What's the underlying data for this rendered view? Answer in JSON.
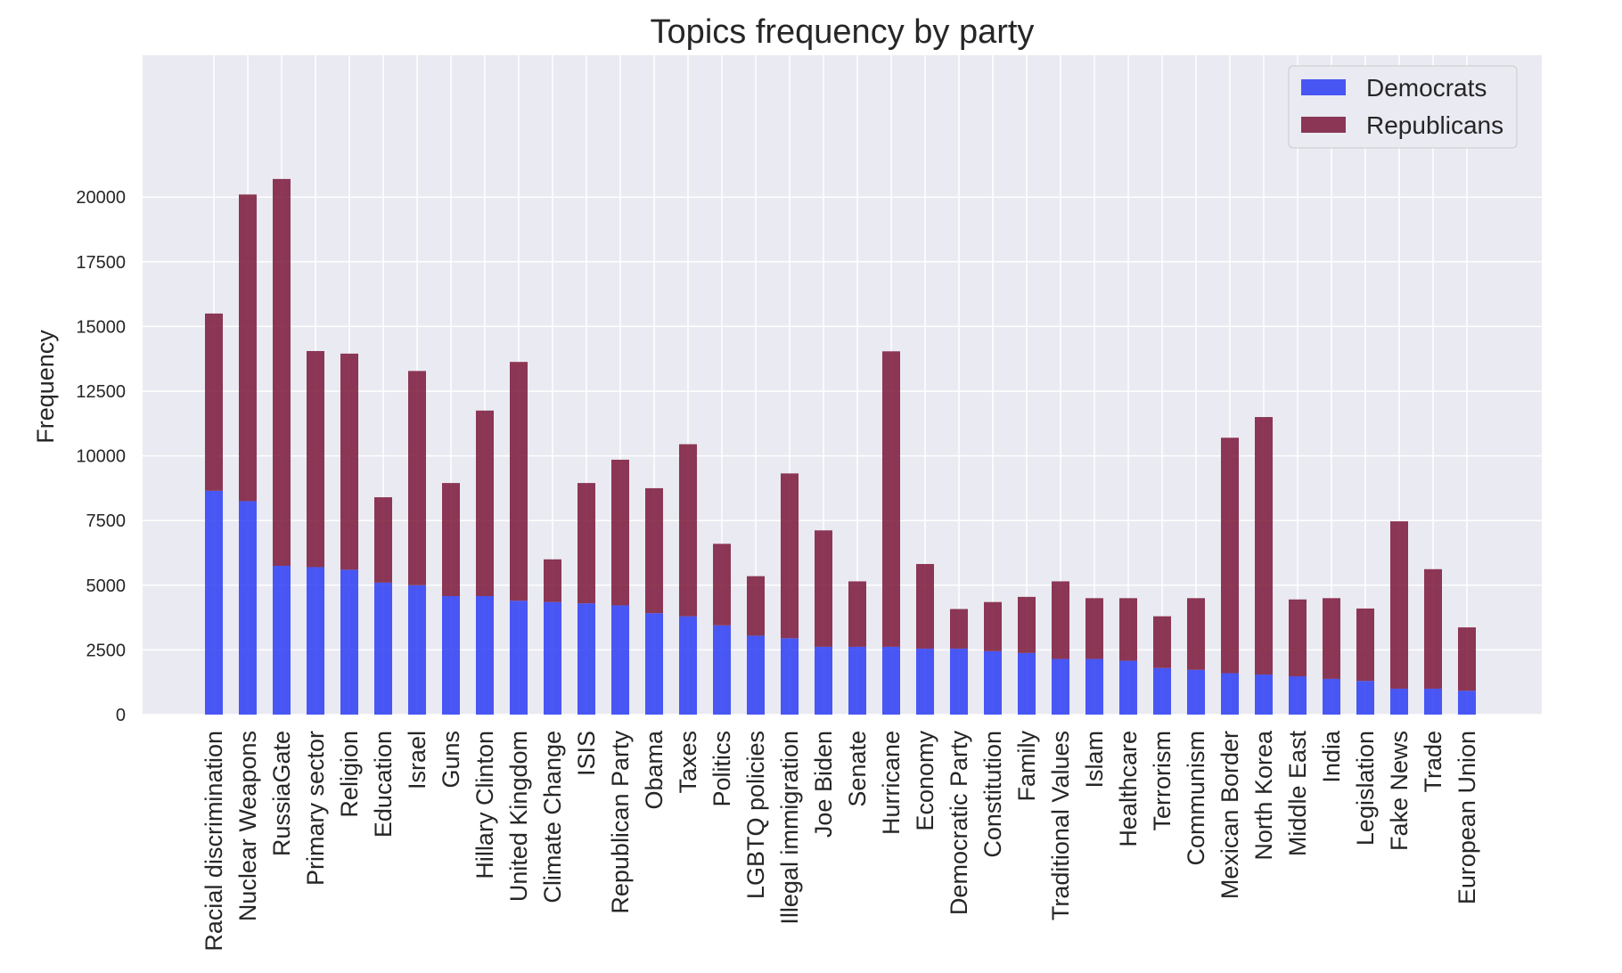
{
  "chart_data": {
    "type": "bar",
    "stacked": true,
    "title": "Topics frequency by party",
    "xlabel": "",
    "ylabel": "Frequency",
    "ylim": [
      0,
      21500
    ],
    "yticks": [
      0,
      2500,
      5000,
      7500,
      10000,
      12500,
      15000,
      17500,
      20000
    ],
    "grid": true,
    "legend_position": "top-right",
    "categories": [
      "Racial discrimination",
      "Nuclear Weapons",
      "RussiaGate",
      "Primary sector",
      "Religion",
      "Education",
      "Israel",
      "Guns",
      "Hillary Clinton",
      "United Kingdom",
      "Climate Change",
      "ISIS",
      "Republican Party",
      "Obama",
      "Taxes",
      "Politics",
      "LGBTQ policies",
      "Illegal immigration",
      "Joe Biden",
      "Senate",
      "Hurricane",
      "Economy",
      "Democratic Party",
      "Constitution",
      "Family",
      "Traditional Values",
      "Islam",
      "Healthcare",
      "Terrorism",
      "Communism",
      "Mexican Border",
      "North Korea",
      "Middle East",
      "India",
      "Legislation",
      "Fake News",
      "Trade",
      "European Union"
    ],
    "series": [
      {
        "name": "Democrats",
        "color": "#2b3cf5",
        "values": [
          8650,
          8250,
          5750,
          5700,
          5600,
          5100,
          5000,
          4580,
          4580,
          4400,
          4350,
          4300,
          4220,
          3920,
          3800,
          3450,
          3050,
          2950,
          2620,
          2620,
          2620,
          2550,
          2550,
          2450,
          2380,
          2150,
          2150,
          2080,
          1800,
          1730,
          1600,
          1550,
          1480,
          1380,
          1300,
          1000,
          1000,
          920
        ]
      },
      {
        "name": "Republicans",
        "color": "#7a1638",
        "values": [
          6850,
          11850,
          14950,
          8350,
          8350,
          3300,
          8280,
          4370,
          7170,
          9230,
          1650,
          4650,
          5630,
          4830,
          6650,
          3150,
          2300,
          6370,
          4500,
          2530,
          11420,
          3270,
          1530,
          1900,
          2170,
          3000,
          2350,
          2420,
          2000,
          2770,
          9100,
          9950,
          2970,
          3120,
          2800,
          6470,
          4620,
          2450
        ]
      }
    ]
  }
}
